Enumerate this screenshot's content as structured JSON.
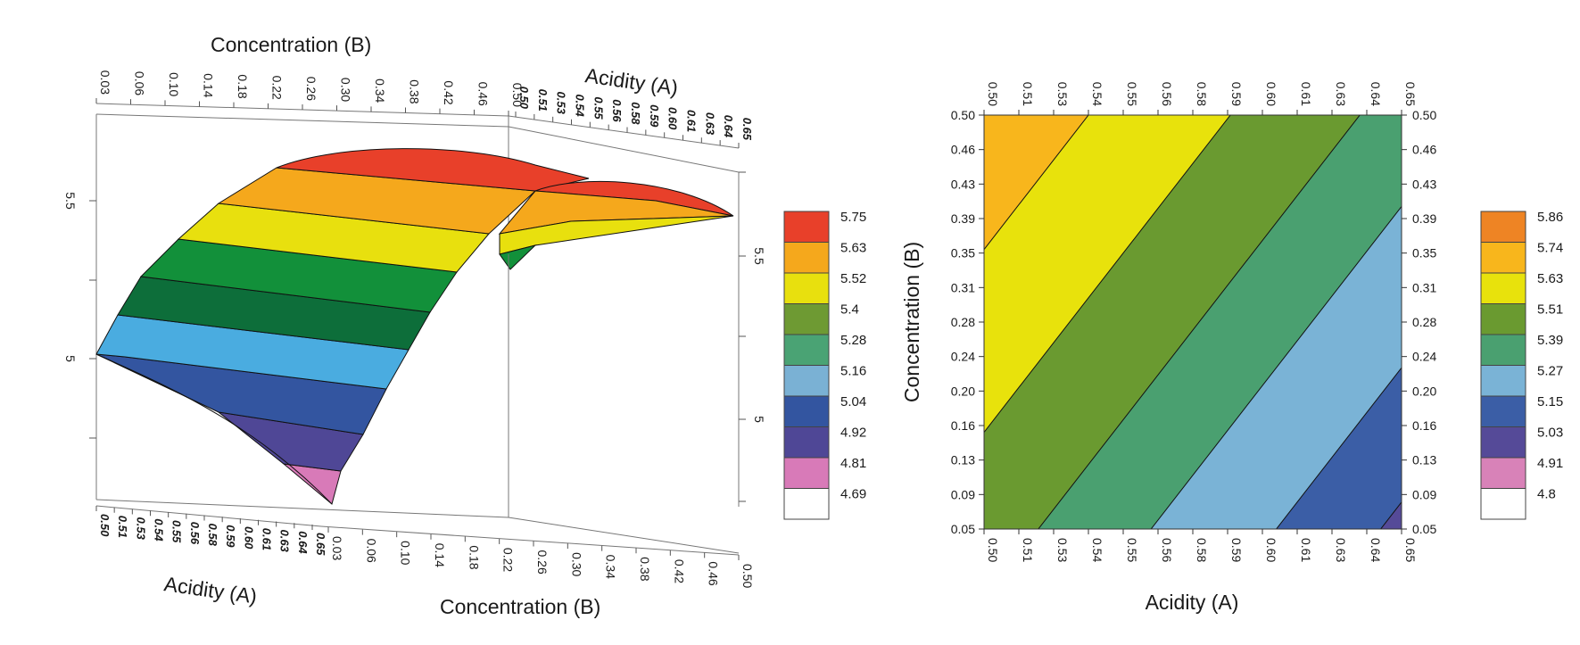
{
  "chart_data": [
    {
      "type": "surface3d",
      "title": "",
      "axis_title_top_b": "Concentration (B)",
      "axis_title_top_a": "Acidity (A)",
      "axis_title_bottom_a": "Acidity (A)",
      "axis_title_bottom_b": "Concentration (B)",
      "b_ticks": [
        "0.03",
        "0.06",
        "0.10",
        "0.14",
        "0.18",
        "0.22",
        "0.26",
        "0.30",
        "0.34",
        "0.38",
        "0.42",
        "0.46",
        "0.50"
      ],
      "a_ticks": [
        "0.50",
        "0.51",
        "0.53",
        "0.54",
        "0.55",
        "0.56",
        "0.58",
        "0.59",
        "0.60",
        "0.61",
        "0.63",
        "0.64",
        "0.65"
      ],
      "z_ticks_left": [
        "5.5",
        "5"
      ],
      "z_ticks_right": [
        "5.5",
        "5"
      ],
      "z_range": [
        4.69,
        5.86
      ],
      "legend": {
        "values": [
          "5.75",
          "5.63",
          "5.52",
          "5.4",
          "5.28",
          "5.16",
          "5.04",
          "4.92",
          "4.81",
          "4.69"
        ],
        "colors": [
          "#e8402a",
          "#f5a81c",
          "#e8e00e",
          "#6e9a33",
          "#4aa374",
          "#7ab1d4",
          "#3355a0",
          "#4f4796",
          "#d87ab8",
          "#ffffff"
        ]
      }
    },
    {
      "type": "contour",
      "title": "",
      "xlabel": "Acidity (A)",
      "ylabel": "Concentration (B)",
      "x_ticks": [
        "0.50",
        "0.51",
        "0.53",
        "0.54",
        "0.55",
        "0.56",
        "0.58",
        "0.59",
        "0.60",
        "0.61",
        "0.63",
        "0.64",
        "0.65"
      ],
      "y_ticks": [
        "0.50",
        "0.46",
        "0.43",
        "0.39",
        "0.35",
        "0.31",
        "0.28",
        "0.24",
        "0.20",
        "0.16",
        "0.13",
        "0.09",
        "0.05"
      ],
      "xlim": [
        0.5,
        0.65
      ],
      "ylim": [
        0.05,
        0.5
      ],
      "legend": {
        "values": [
          "5.86",
          "5.74",
          "5.63",
          "5.51",
          "5.39",
          "5.27",
          "5.15",
          "5.03",
          "4.91",
          "4.8"
        ],
        "colors": [
          "#ee8424",
          "#f8b61c",
          "#e8e20c",
          "#6a9a30",
          "#4aa070",
          "#7ab3d6",
          "#3b5ea6",
          "#554a98",
          "#d882b8",
          "#ffffff"
        ]
      }
    }
  ]
}
